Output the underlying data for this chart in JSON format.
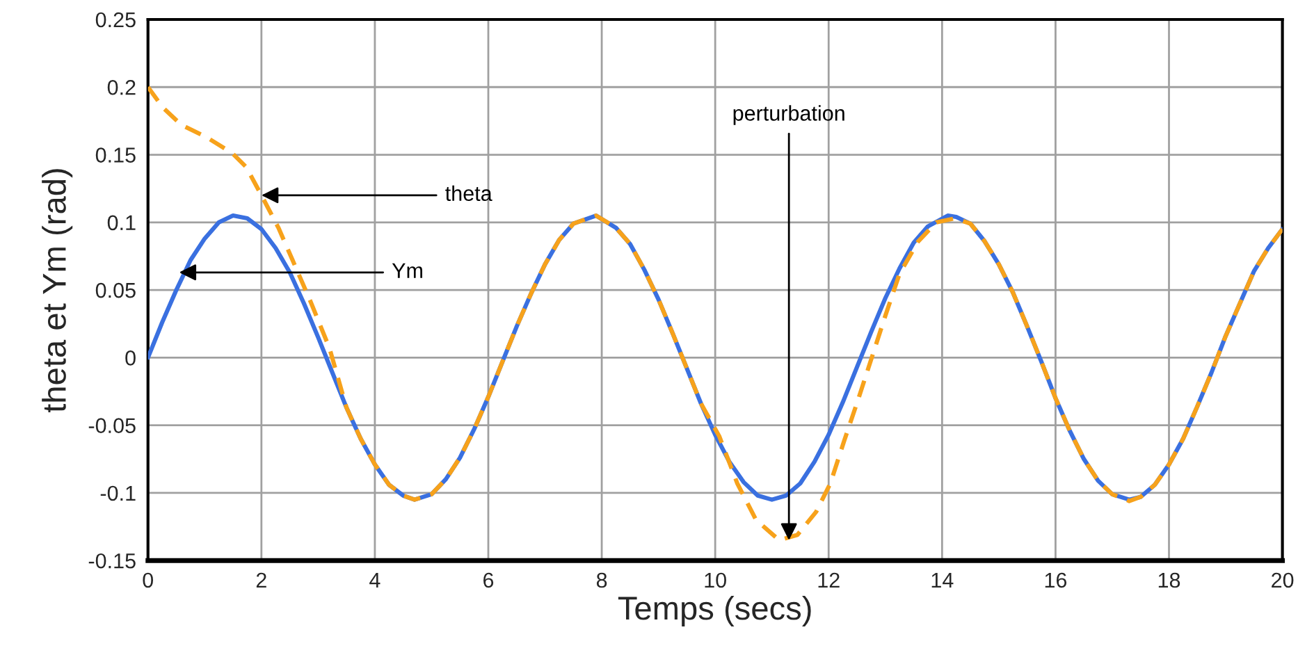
{
  "chart_data": {
    "type": "line",
    "xlabel": "Temps (secs)",
    "ylabel": "theta et Ym (rad)",
    "xlim": [
      0,
      20
    ],
    "xticks": [
      0,
      2,
      4,
      6,
      8,
      10,
      12,
      14,
      16,
      18,
      20
    ],
    "ylim": [
      -0.15,
      0.25
    ],
    "yticks": [
      -0.15,
      -0.1,
      -0.05,
      0,
      0.05,
      0.1,
      0.15,
      0.2,
      0.25
    ],
    "grid": true,
    "legend": false,
    "marker": "none",
    "series": [
      {
        "color": "#f7a21b",
        "line_style": "dashed",
        "x": [
          0,
          0.26,
          0.59,
          1.03,
          1.49,
          1.73,
          2.0,
          2.3,
          2.55,
          2.87,
          3.2,
          3.5,
          3.75,
          4,
          4.25,
          4.5,
          4.7,
          5,
          5.25,
          5.5,
          5.75,
          6,
          6.25,
          6.5,
          6.75,
          7,
          7.25,
          7.5,
          7.9,
          8.25,
          8.5,
          8.75,
          9,
          9.25,
          9.5,
          9.75,
          10.07,
          10.39,
          10.72,
          11.13,
          11.45,
          11.78,
          12.03,
          12.27,
          12.52,
          12.76,
          13.0,
          13.25,
          13.58,
          13.9,
          14.23,
          14.5,
          14.75,
          15,
          15.25,
          15.5,
          15.75,
          16,
          16.25,
          16.5,
          16.75,
          17,
          17.3,
          17.5,
          17.75,
          18,
          18.25,
          18.5,
          18.75,
          19,
          19.25,
          19.5,
          19.75,
          20
        ],
        "values": [
          0.2,
          0.185,
          0.172,
          0.163,
          0.151,
          0.141,
          0.12,
          0.096,
          0.072,
          0.041,
          0.007,
          -0.037,
          -0.06,
          -0.079,
          -0.094,
          -0.102,
          -0.105,
          -0.101,
          -0.09,
          -0.074,
          -0.053,
          -0.029,
          -0.003,
          0.023,
          0.047,
          0.069,
          0.087,
          0.099,
          0.105,
          0.096,
          0.084,
          0.065,
          0.043,
          0.018,
          -0.008,
          -0.034,
          -0.058,
          -0.093,
          -0.12,
          -0.135,
          -0.131,
          -0.114,
          -0.093,
          -0.062,
          -0.031,
          0.0,
          0.031,
          0.062,
          0.086,
          0.1,
          0.103,
          0.099,
          0.086,
          0.069,
          0.048,
          0.023,
          -0.003,
          -0.03,
          -0.054,
          -0.075,
          -0.091,
          -0.101,
          -0.106,
          -0.103,
          -0.094,
          -0.079,
          -0.06,
          -0.036,
          -0.011,
          0.016,
          0.04,
          0.064,
          0.081,
          0.095
        ]
      },
      {
        "color": "#3a70e0",
        "line_style": "solid",
        "x": [
          0,
          0.25,
          0.5,
          0.75,
          1,
          1.25,
          1.5,
          1.75,
          2,
          2.25,
          2.5,
          2.75,
          3,
          3.25,
          3.5,
          3.75,
          4,
          4.25,
          4.5,
          4.7,
          5,
          5.25,
          5.5,
          5.75,
          6,
          6.25,
          6.5,
          6.75,
          7,
          7.25,
          7.5,
          7.9,
          8.25,
          8.5,
          8.75,
          9,
          9.25,
          9.5,
          9.75,
          10,
          10.25,
          10.5,
          10.75,
          11,
          11.25,
          11.5,
          11.75,
          12,
          12.25,
          12.5,
          12.75,
          13,
          13.25,
          13.5,
          13.75,
          14.1,
          14.25,
          14.5,
          14.75,
          15,
          15.25,
          15.5,
          15.75,
          16,
          16.25,
          16.5,
          16.75,
          17,
          17.3,
          17.5,
          17.75,
          18,
          18.25,
          18.5,
          18.75,
          19,
          19.25,
          19.5,
          19.75,
          20
        ],
        "values": [
          0,
          0.026,
          0.05,
          0.072,
          0.088,
          0.1,
          0.105,
          0.103,
          0.095,
          0.081,
          0.063,
          0.04,
          0.015,
          -0.011,
          -0.037,
          -0.06,
          -0.079,
          -0.094,
          -0.102,
          -0.105,
          -0.101,
          -0.09,
          -0.074,
          -0.053,
          -0.029,
          -0.003,
          0.023,
          0.047,
          0.069,
          0.087,
          0.099,
          0.105,
          0.096,
          0.084,
          0.065,
          0.043,
          0.018,
          -0.008,
          -0.034,
          -0.057,
          -0.077,
          -0.092,
          -0.102,
          -0.105,
          -0.102,
          -0.093,
          -0.077,
          -0.057,
          -0.033,
          -0.007,
          0.019,
          0.044,
          0.066,
          0.085,
          0.097,
          0.105,
          0.104,
          0.099,
          0.086,
          0.069,
          0.048,
          0.023,
          -0.003,
          -0.03,
          -0.054,
          -0.075,
          -0.091,
          -0.101,
          -0.105,
          -0.103,
          -0.094,
          -0.079,
          -0.06,
          -0.036,
          -0.011,
          0.016,
          0.04,
          0.064,
          0.081,
          0.095
        ]
      }
    ],
    "annotations": [
      {
        "text": "theta",
        "x": 2.0,
        "y": 0.12
      },
      {
        "text": "Ym",
        "x": 0.55,
        "y": 0.063
      },
      {
        "text": "perturbation",
        "x": 11.3,
        "y": -0.135
      }
    ]
  }
}
